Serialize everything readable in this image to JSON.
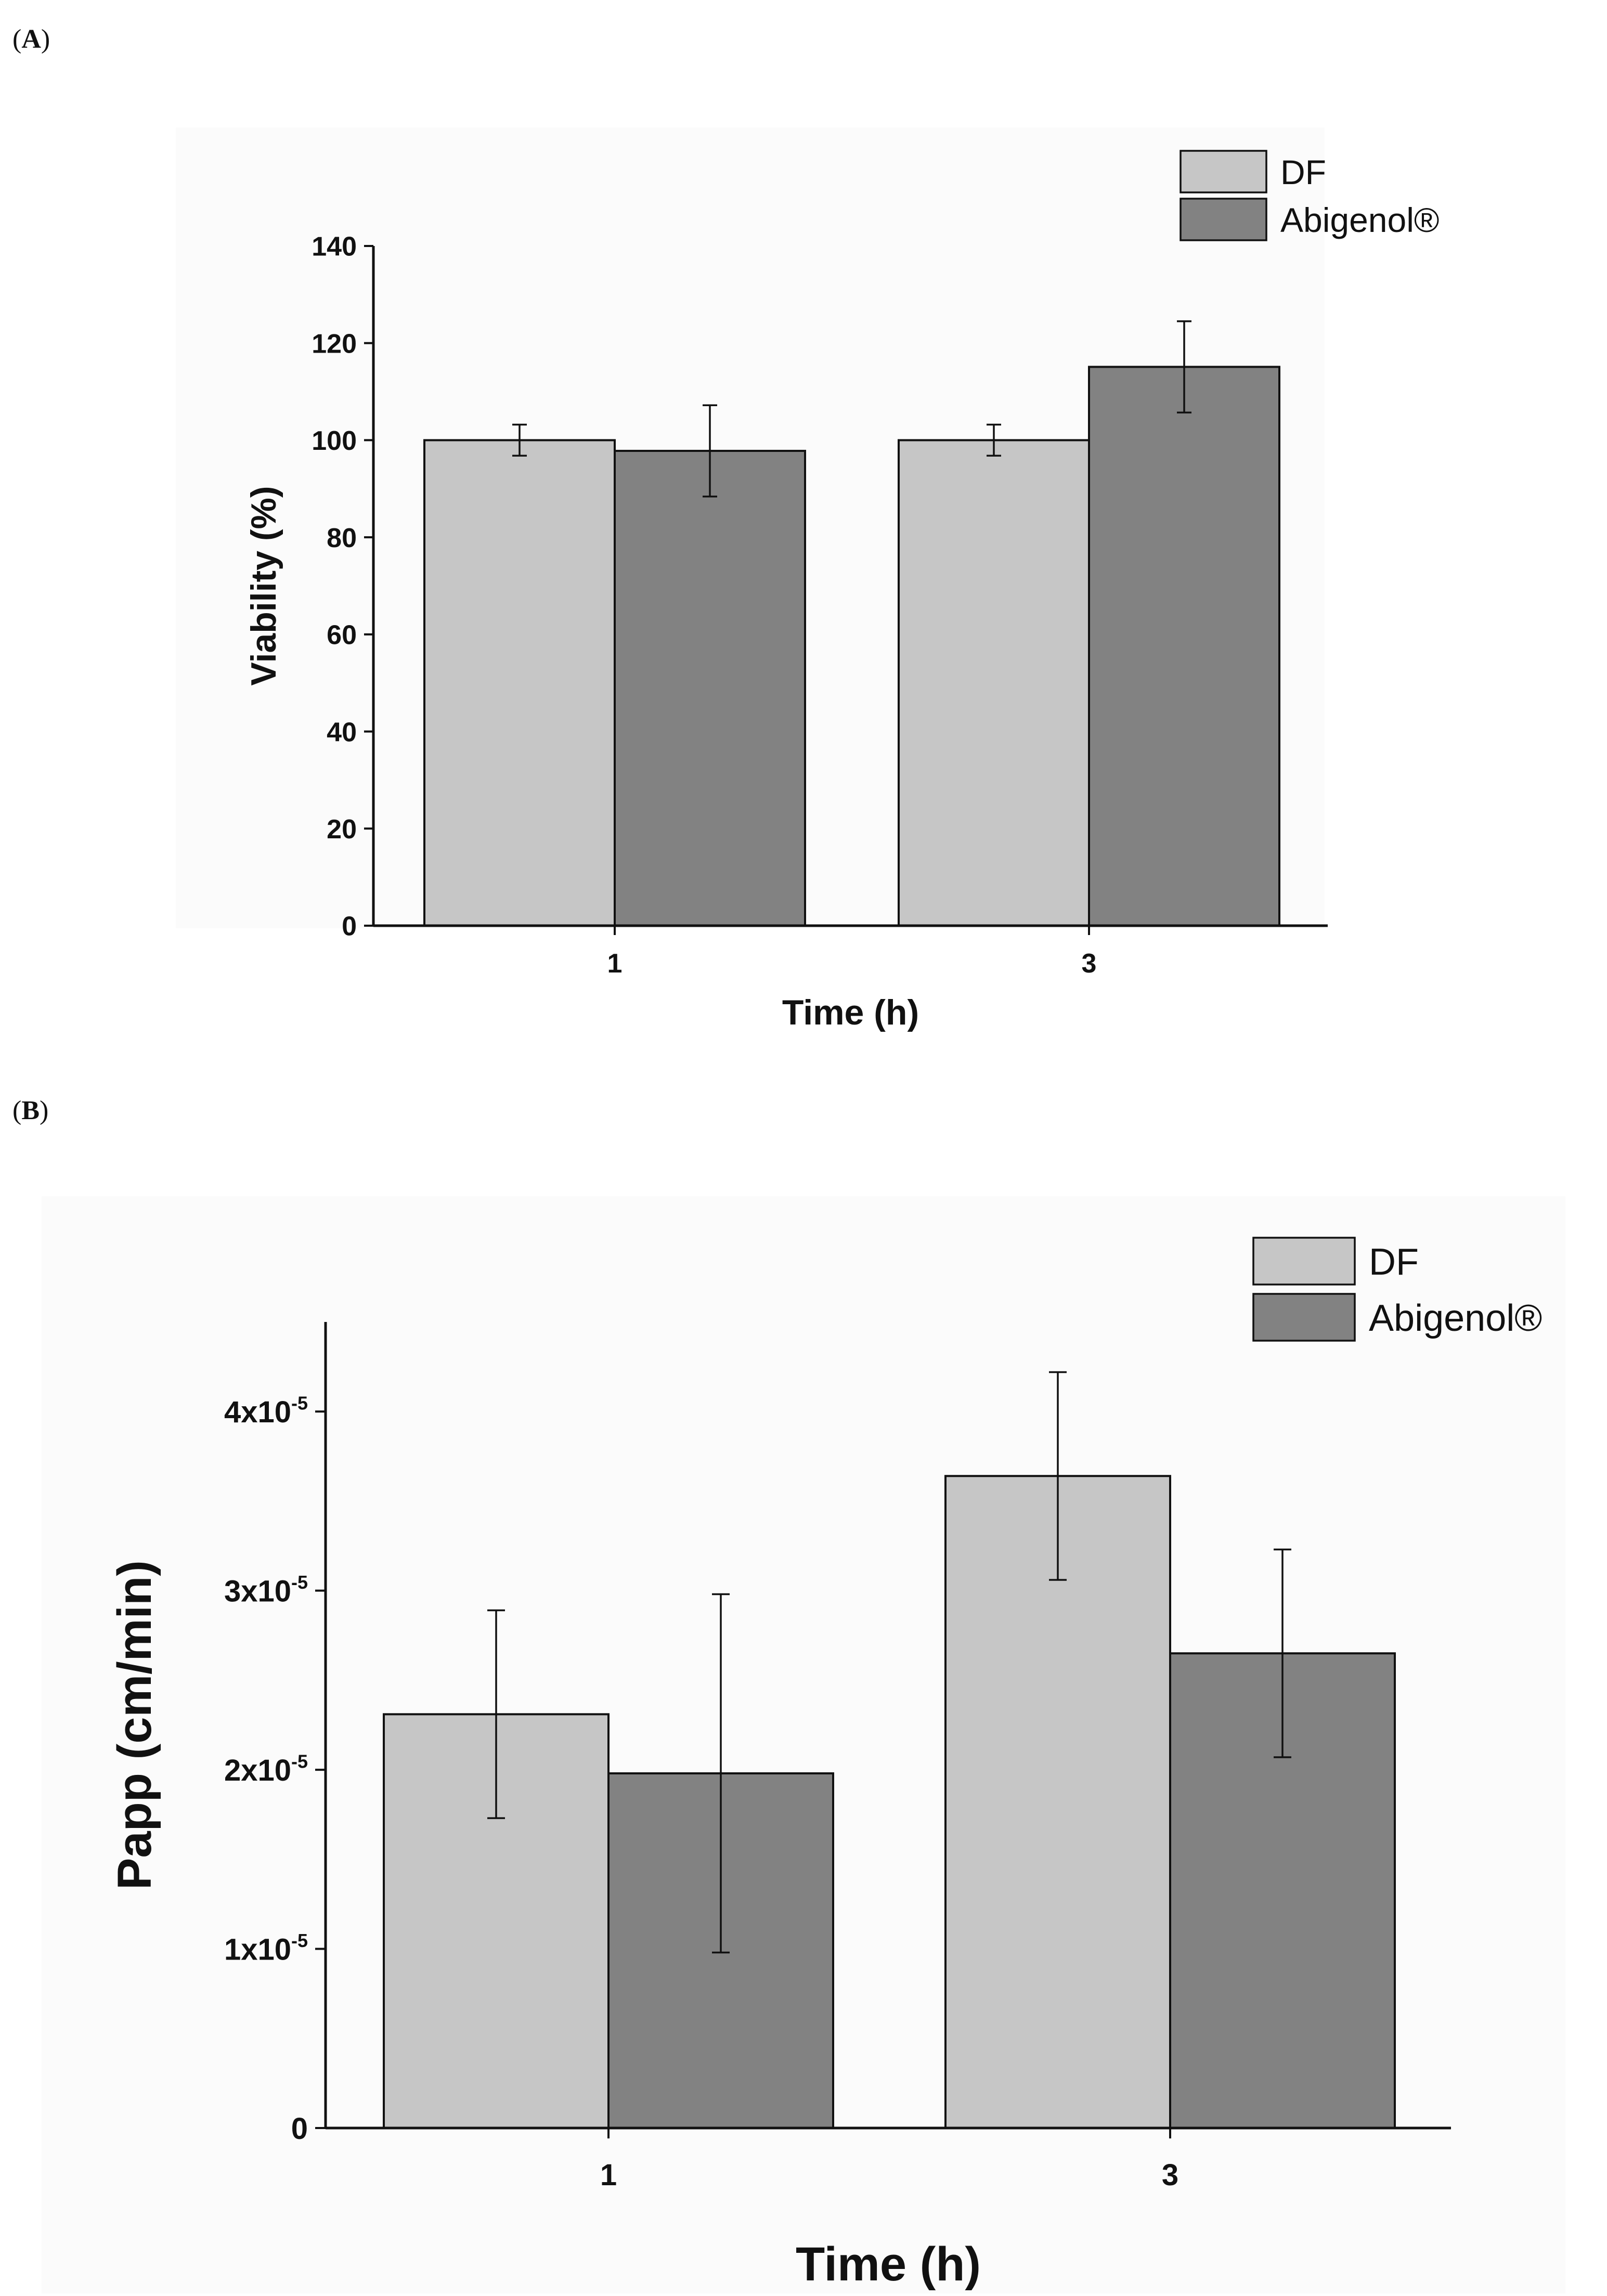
{
  "panels": {
    "a": {
      "label_open": "(",
      "label_letter": "A",
      "label_close": ")"
    },
    "b": {
      "label_open": "(",
      "label_letter": "B",
      "label_close": ")"
    }
  },
  "colors": {
    "series_df": "#c6c6c6",
    "series_abigenol": "#828282",
    "axis": "#111111",
    "plot_background": "#fbfbfb"
  },
  "chart_data": [
    {
      "type": "bar",
      "id": "A",
      "title": "",
      "xlabel": "Time (h)",
      "ylabel": "Viability (%)",
      "categories": [
        "1",
        "3"
      ],
      "ylim": [
        0,
        140
      ],
      "yticks": [
        0,
        20,
        40,
        60,
        80,
        100,
        120,
        140
      ],
      "ytick_labels": [
        "0",
        "20",
        "40",
        "60",
        "80",
        "100",
        "120",
        "140"
      ],
      "legend_position": "top-right",
      "grid": false,
      "series": [
        {
          "name": "DF",
          "values": [
            100,
            100
          ],
          "errors": [
            3.2,
            3.2
          ]
        },
        {
          "name": "Abigenol®",
          "values": [
            97.8,
            115.1
          ],
          "errors": [
            9.4,
            9.4
          ]
        }
      ]
    },
    {
      "type": "bar",
      "id": "B",
      "title": "",
      "xlabel": "Time (h)",
      "ylabel": "Papp (cm/min)",
      "categories": [
        "1",
        "3"
      ],
      "ylim": [
        0,
        4.5e-05
      ],
      "yticks": [
        0,
        1e-05,
        2e-05,
        3e-05,
        4e-05
      ],
      "ytick_labels": [
        {
          "base": "0",
          "exp": ""
        },
        {
          "base": "1x10",
          "exp": "-5"
        },
        {
          "base": "2x10",
          "exp": "-5"
        },
        {
          "base": "3x10",
          "exp": "-5"
        },
        {
          "base": "4x10",
          "exp": "-5"
        }
      ],
      "legend_position": "top-right",
      "grid": false,
      "series": [
        {
          "name": "DF",
          "values": [
            2.31e-05,
            3.64e-05
          ],
          "errors": [
            5.8e-06,
            5.8e-06
          ]
        },
        {
          "name": "Abigenol®",
          "values": [
            1.98e-05,
            2.65e-05
          ],
          "errors": [
            1e-05,
            5.8e-06
          ]
        }
      ]
    }
  ]
}
